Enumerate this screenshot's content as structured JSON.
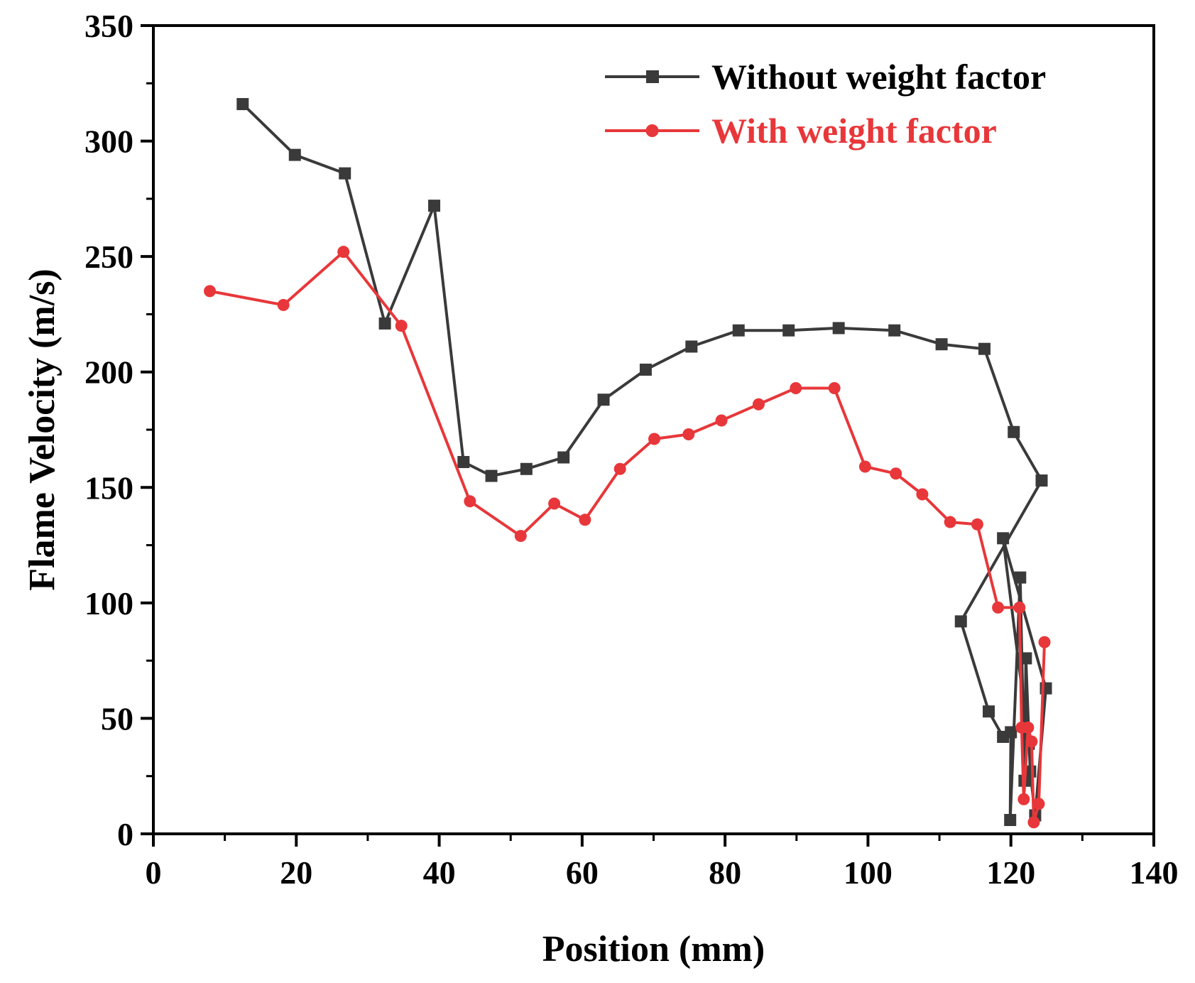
{
  "chart_data": {
    "type": "line",
    "title": "",
    "xlabel": "Position (mm)",
    "ylabel": "Flame Velocity (m/s)",
    "xlim": [
      0,
      140
    ],
    "ylim": [
      0,
      350
    ],
    "xticks": [
      0,
      20,
      40,
      60,
      80,
      100,
      120,
      140
    ],
    "yticks": [
      0,
      50,
      100,
      150,
      200,
      250,
      300,
      350
    ],
    "xtick_labels": [
      "0",
      "20",
      "40",
      "60",
      "80",
      "100",
      "120",
      "140"
    ],
    "ytick_labels": [
      "0",
      "50",
      "100",
      "150",
      "200",
      "250",
      "300",
      "350"
    ],
    "grid": false,
    "legend_position": "top-right",
    "series": [
      {
        "name": "Without weight factor",
        "color": "#3a3a3a",
        "marker": "square",
        "x": [
          12.5,
          19.8,
          26.8,
          32.4,
          39.3,
          43.4,
          47.3,
          52.2,
          57.4,
          63.0,
          68.9,
          75.3,
          81.9,
          88.9,
          95.9,
          103.7,
          110.3,
          116.3,
          120.4,
          124.3,
          113.0,
          116.9,
          118.9,
          120.0,
          119.9,
          121.3,
          121.9,
          122.1,
          122.7,
          123.4,
          124.9,
          118.9,
          122.5
        ],
        "y": [
          316,
          294,
          286,
          221,
          272,
          161,
          155,
          158,
          163,
          188,
          201,
          211,
          218,
          218,
          219,
          218,
          212,
          210,
          174,
          153,
          92,
          53,
          42,
          44,
          6,
          111,
          23,
          76,
          27,
          8,
          63,
          128,
          39
        ]
      },
      {
        "name": "With weight factor",
        "color": "#e8373a",
        "marker": "circle",
        "x": [
          7.9,
          18.2,
          26.6,
          34.7,
          44.3,
          51.4,
          56.1,
          60.4,
          65.3,
          70.1,
          74.9,
          79.5,
          84.7,
          89.9,
          95.3,
          99.6,
          103.9,
          107.6,
          111.5,
          115.3,
          118.2,
          121.2,
          121.5,
          121.8,
          122.4,
          122.9,
          123.2,
          123.9,
          124.7
        ],
        "y": [
          235,
          229,
          252,
          220,
          144,
          129,
          143,
          136,
          158,
          171,
          173,
          179,
          186,
          193,
          193,
          159,
          156,
          147,
          135,
          134,
          98,
          98,
          46,
          15,
          46,
          40,
          5,
          13,
          83
        ]
      }
    ]
  }
}
